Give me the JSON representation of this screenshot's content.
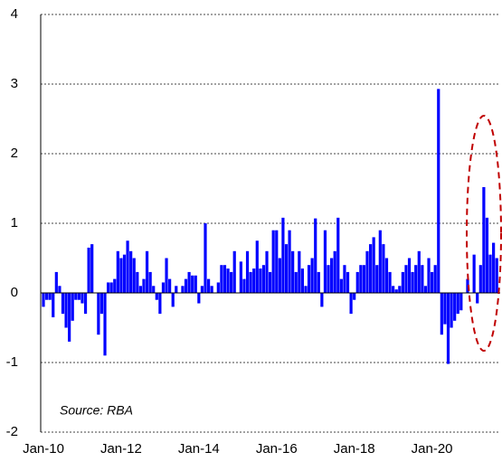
{
  "chart_data": {
    "type": "bar",
    "categories": [
      "Jan-10",
      null,
      null,
      null,
      null,
      null,
      null,
      null,
      null,
      null,
      null,
      null,
      null,
      null,
      null,
      null,
      null,
      null,
      null,
      null,
      null,
      null,
      null,
      null,
      "Jan-12",
      null,
      null,
      null,
      null,
      null,
      null,
      null,
      null,
      null,
      null,
      null,
      null,
      null,
      null,
      null,
      null,
      null,
      null,
      null,
      null,
      null,
      null,
      null,
      "Jan-14",
      null,
      null,
      null,
      null,
      null,
      null,
      null,
      null,
      null,
      null,
      null,
      null,
      null,
      null,
      null,
      null,
      null,
      null,
      null,
      null,
      null,
      null,
      null,
      "Jan-16",
      null,
      null,
      null,
      null,
      null,
      null,
      null,
      null,
      null,
      null,
      null,
      null,
      null,
      null,
      null,
      null,
      null,
      null,
      null,
      null,
      null,
      null,
      null,
      "Jan-18",
      null,
      null,
      null,
      null,
      null,
      null,
      null,
      null,
      null,
      null,
      null,
      null,
      null,
      null,
      null,
      null,
      null,
      null,
      null,
      null,
      null,
      null,
      null,
      "Jan-20",
      null,
      null,
      null,
      null,
      null,
      null,
      null,
      null,
      null,
      null,
      null,
      null,
      null,
      null,
      null,
      null,
      null,
      null,
      null,
      null
    ],
    "values": [
      -0.2,
      -0.1,
      -0.1,
      -0.35,
      0.3,
      0.1,
      -0.3,
      -0.5,
      -0.7,
      -0.4,
      -0.1,
      -0.1,
      -0.15,
      -0.3,
      0.65,
      0.7,
      0.0,
      -0.6,
      -0.3,
      -0.9,
      0.15,
      0.15,
      0.2,
      0.6,
      0.5,
      0.55,
      0.75,
      0.6,
      0.5,
      0.3,
      0.1,
      0.2,
      0.6,
      0.3,
      0.1,
      -0.1,
      -0.3,
      0.15,
      0.5,
      0.2,
      -0.2,
      0.1,
      0.0,
      0.1,
      0.2,
      0.3,
      0.25,
      0.25,
      -0.15,
      0.1,
      1.0,
      0.2,
      0.1,
      0.0,
      0.15,
      0.4,
      0.4,
      0.35,
      0.3,
      0.6,
      0.0,
      0.45,
      0.2,
      0.6,
      0.3,
      0.35,
      0.75,
      0.35,
      0.4,
      0.6,
      0.3,
      0.9,
      0.9,
      0.5,
      1.08,
      0.7,
      0.9,
      0.6,
      0.3,
      0.6,
      0.35,
      0.1,
      0.4,
      0.5,
      1.07,
      0.3,
      -0.2,
      0.9,
      0.4,
      0.5,
      0.6,
      1.08,
      0.2,
      0.4,
      0.3,
      -0.3,
      -0.1,
      0.3,
      0.4,
      0.4,
      0.6,
      0.7,
      0.8,
      0.4,
      0.9,
      0.7,
      0.5,
      0.3,
      0.1,
      0.05,
      0.1,
      0.3,
      0.4,
      0.5,
      0.3,
      0.4,
      0.6,
      0.4,
      0.1,
      0.5,
      0.3,
      0.4,
      2.93,
      -0.6,
      -0.45,
      -1.02,
      -0.5,
      -0.4,
      -0.3,
      -0.25,
      0.0,
      0.2,
      0.0,
      0.55,
      -0.15,
      0.4,
      1.52,
      1.08,
      0.55,
      0.72,
      0.5
    ],
    "color": "#0000ff",
    "ylim": [
      -2,
      4
    ],
    "yticks": [
      -2,
      -1,
      0,
      1,
      2,
      3,
      4
    ],
    "grid": true,
    "annotations": [
      "Source: RBA"
    ]
  }
}
